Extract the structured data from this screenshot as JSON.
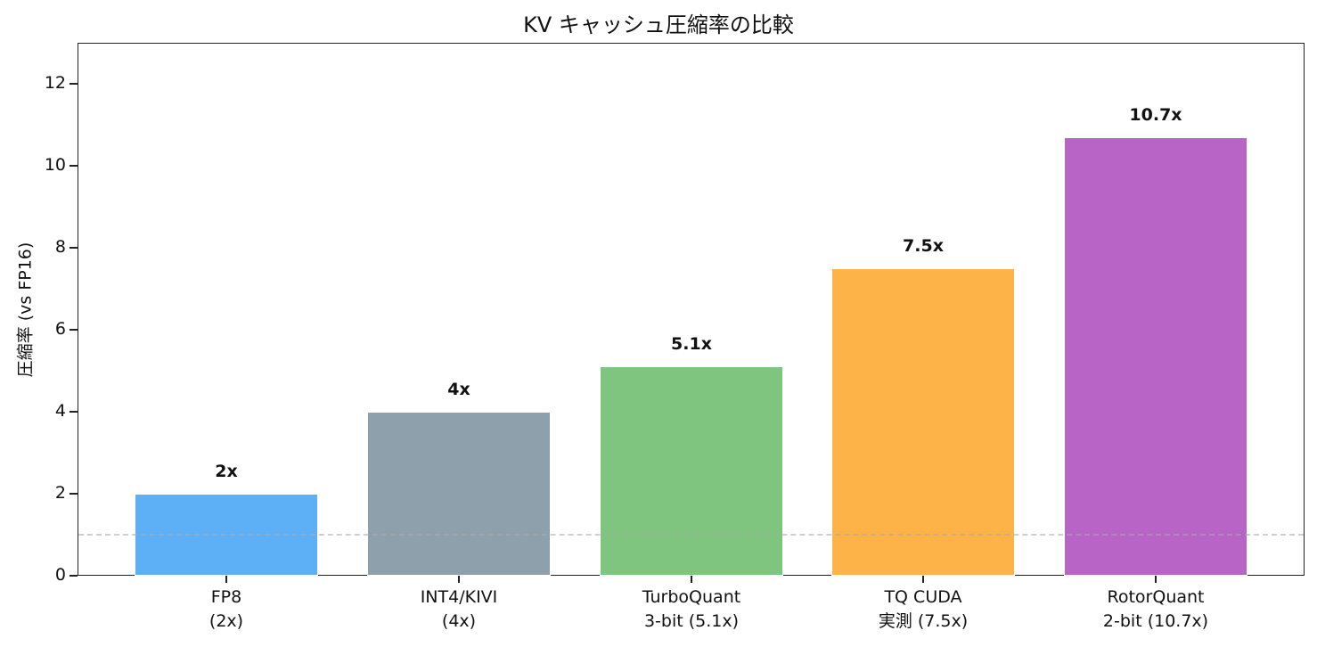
{
  "chart_data": {
    "type": "bar",
    "title": "KV キャッシュ圧縮率の比較",
    "xlabel": "",
    "ylabel": "圧縮率 (vs FP16)",
    "ylim": [
      0,
      13
    ],
    "yticks": [
      "0",
      "2",
      "4",
      "6",
      "8",
      "10",
      "12"
    ],
    "grid": false,
    "categories": [
      "FP8\n(2x)",
      "INT4/KIVI\n(4x)",
      "TurboQuant\n3-bit (5.1x)",
      "TQ CUDA\n実測 (7.5x)",
      "RotorQuant\n2-bit (10.7x)"
    ],
    "category_lines": [
      [
        "FP8",
        "(2x)"
      ],
      [
        "INT4/KIVI",
        "(4x)"
      ],
      [
        "TurboQuant",
        "3-bit (5.1x)"
      ],
      [
        "TQ CUDA",
        "実測 (7.5x)"
      ],
      [
        "RotorQuant",
        "2-bit (10.7x)"
      ]
    ],
    "values": [
      2,
      4,
      5.1,
      7.5,
      10.7
    ],
    "data_labels": [
      "2x",
      "4x",
      "5.1x",
      "7.5x",
      "10.7x"
    ],
    "colors": [
      "#5db0f5",
      "#8da0ab",
      "#7fc57f",
      "#fdb347",
      "#b764c6"
    ],
    "reference_line": {
      "y": 1,
      "style": "dashed",
      "color": "#cccccc",
      "label": ""
    }
  }
}
